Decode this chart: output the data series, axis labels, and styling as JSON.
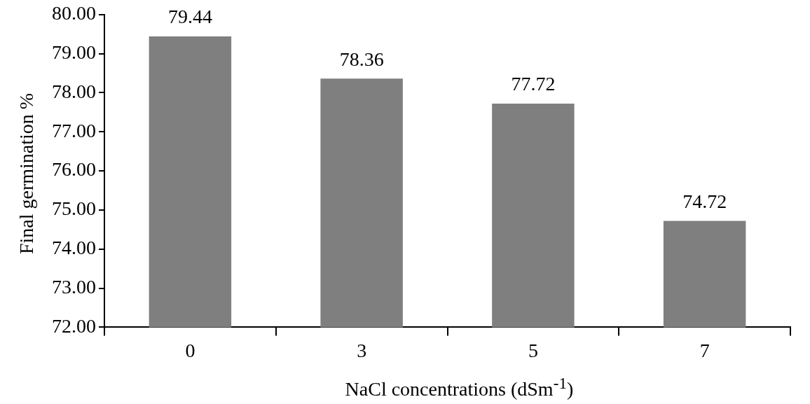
{
  "chart_data": {
    "type": "bar",
    "xlabel": "NaCl concentrations (dSm$^{-1}$)",
    "ylabel": "Final germination %",
    "categories": [
      "0",
      "3",
      "5",
      "7"
    ],
    "values": [
      79.44,
      78.36,
      77.72,
      74.72
    ],
    "color": "#7f7f7f",
    "ylim": [
      72,
      80
    ],
    "yticks": [
      {
        "value": 72,
        "label": "72.00"
      },
      {
        "value": 73,
        "label": "73.00"
      },
      {
        "value": 74,
        "label": "74.00"
      },
      {
        "value": 75,
        "label": "75.00"
      },
      {
        "value": 76,
        "label": "76.00"
      },
      {
        "value": 77,
        "label": "77.00"
      },
      {
        "value": 78,
        "label": "78.00"
      },
      {
        "value": 79,
        "label": "79.00"
      },
      {
        "value": 80,
        "label": "80.00"
      }
    ],
    "grid": false,
    "legend": false,
    "data_labels": true
  }
}
